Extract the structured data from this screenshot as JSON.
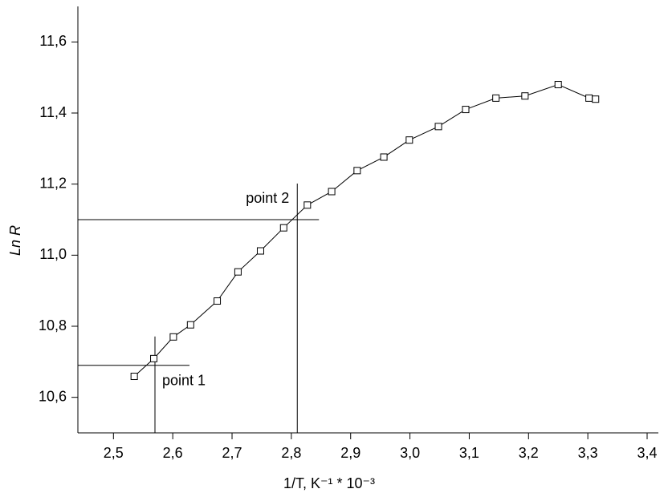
{
  "chart_data": {
    "type": "line",
    "x_label": "1/T, K⁻¹ * 10⁻³",
    "y_label": "Ln R",
    "xlim": [
      2.44,
      3.4
    ],
    "ylim": [
      10.5,
      11.7
    ],
    "xticks": [
      {
        "value": 2.5,
        "label": "2,5"
      },
      {
        "value": 2.6,
        "label": "2,6"
      },
      {
        "value": 2.7,
        "label": "2,7"
      },
      {
        "value": 2.8,
        "label": "2,8"
      },
      {
        "value": 2.9,
        "label": "2,9"
      },
      {
        "value": 3.0,
        "label": "3,0"
      },
      {
        "value": 3.1,
        "label": "3,1"
      },
      {
        "value": 3.2,
        "label": "3,2"
      },
      {
        "value": 3.3,
        "label": "3,3"
      },
      {
        "value": 3.4,
        "label": "3,4"
      }
    ],
    "yticks": [
      {
        "value": 10.6,
        "label": "10,6"
      },
      {
        "value": 10.8,
        "label": "10,8"
      },
      {
        "value": 11.0,
        "label": "11,0"
      },
      {
        "value": 11.2,
        "label": "11,2"
      },
      {
        "value": 11.4,
        "label": "11,4"
      },
      {
        "value": 11.6,
        "label": "11,6"
      }
    ],
    "color": "#000000",
    "x": [
      2.535,
      2.568,
      2.601,
      2.63,
      2.675,
      2.71,
      2.748,
      2.787,
      2.827,
      2.868,
      2.911,
      2.956,
      2.999,
      3.048,
      3.094,
      3.145,
      3.194,
      3.25,
      3.302,
      3.313
    ],
    "values": [
      10.659,
      10.709,
      10.77,
      10.804,
      10.871,
      10.953,
      11.012,
      11.077,
      11.141,
      11.179,
      11.238,
      11.276,
      11.324,
      11.362,
      11.41,
      11.442,
      11.448,
      11.48,
      11.442,
      11.439
    ],
    "annotations": [
      {
        "label": "point 1",
        "x": 2.57,
        "y": 10.69
      },
      {
        "label": "point 2",
        "x": 2.81,
        "y": 11.1
      }
    ]
  }
}
